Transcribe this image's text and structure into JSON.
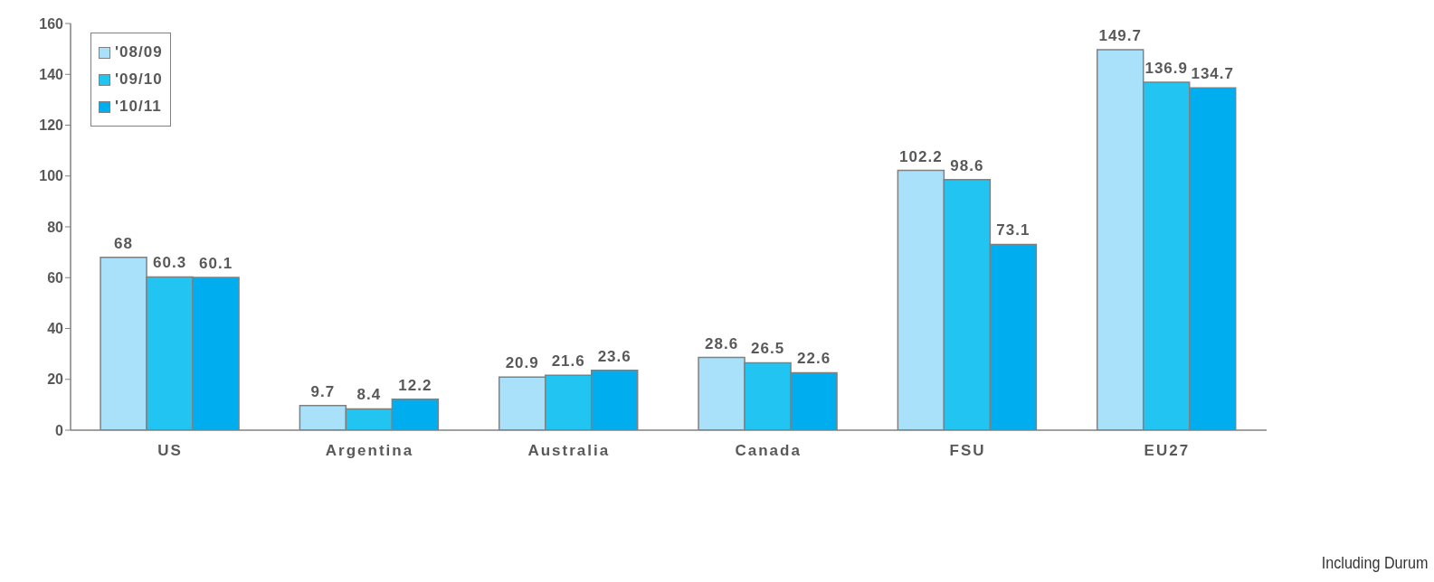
{
  "chart_data": {
    "type": "bar",
    "categories": [
      "US",
      "Argentina",
      "Australia",
      "Canada",
      "FSU",
      "EU27"
    ],
    "series": [
      {
        "name": "'08/09",
        "color": "#a9e1fb",
        "values": [
          68,
          9.7,
          20.9,
          28.6,
          102.2,
          149.7
        ]
      },
      {
        "name": "'09/10",
        "color": "#22c4f2",
        "values": [
          60.3,
          8.4,
          21.6,
          26.5,
          98.6,
          136.9
        ]
      },
      {
        "name": "'10/11",
        "color": "#00aeef",
        "values": [
          60.1,
          12.2,
          23.6,
          22.6,
          73.1,
          134.7
        ]
      }
    ],
    "ylim": [
      0,
      160
    ],
    "yticks": [
      0,
      20,
      40,
      60,
      80,
      100,
      120,
      140,
      160
    ],
    "grid": false,
    "legend": "top left",
    "data_labels": true,
    "annotations": [
      "Including Durum"
    ]
  }
}
